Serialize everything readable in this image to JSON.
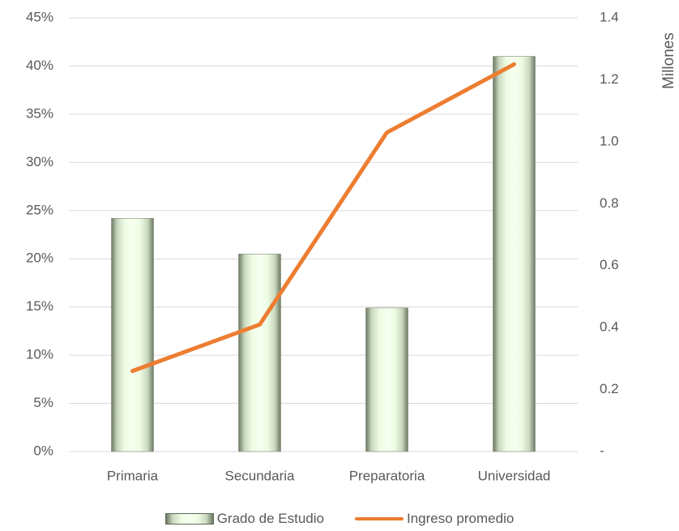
{
  "chart_data": {
    "type": "bar",
    "categories": [
      "Primaria",
      "Secundaria",
      "Preparatoria",
      "Universidad"
    ],
    "series": [
      {
        "name": "Grado de Estudio",
        "type": "bar",
        "axis": "left",
        "values": [
          24.2,
          20.5,
          14.9,
          41.0
        ]
      },
      {
        "name": "Ingreso promedio",
        "type": "line",
        "axis": "right",
        "values": [
          0.26,
          0.41,
          1.03,
          1.25
        ]
      }
    ],
    "y_left": {
      "ylim": [
        0,
        45
      ],
      "ticks": [
        "0%",
        "5%",
        "10%",
        "15%",
        "20%",
        "25%",
        "30%",
        "35%",
        "40%",
        "45%"
      ]
    },
    "y_right": {
      "ylim": [
        0,
        1.4
      ],
      "ticks": [
        "-",
        "0.2",
        "0.4",
        "0.6",
        "0.8",
        "1.0",
        "1.2",
        "1.4"
      ],
      "label": "Millones"
    },
    "grid": true,
    "legend_position": "bottom",
    "colors": {
      "bar": "#eefce4",
      "line": "#ed7d31",
      "grid": "#d9d9d9",
      "text": "#595959"
    }
  }
}
